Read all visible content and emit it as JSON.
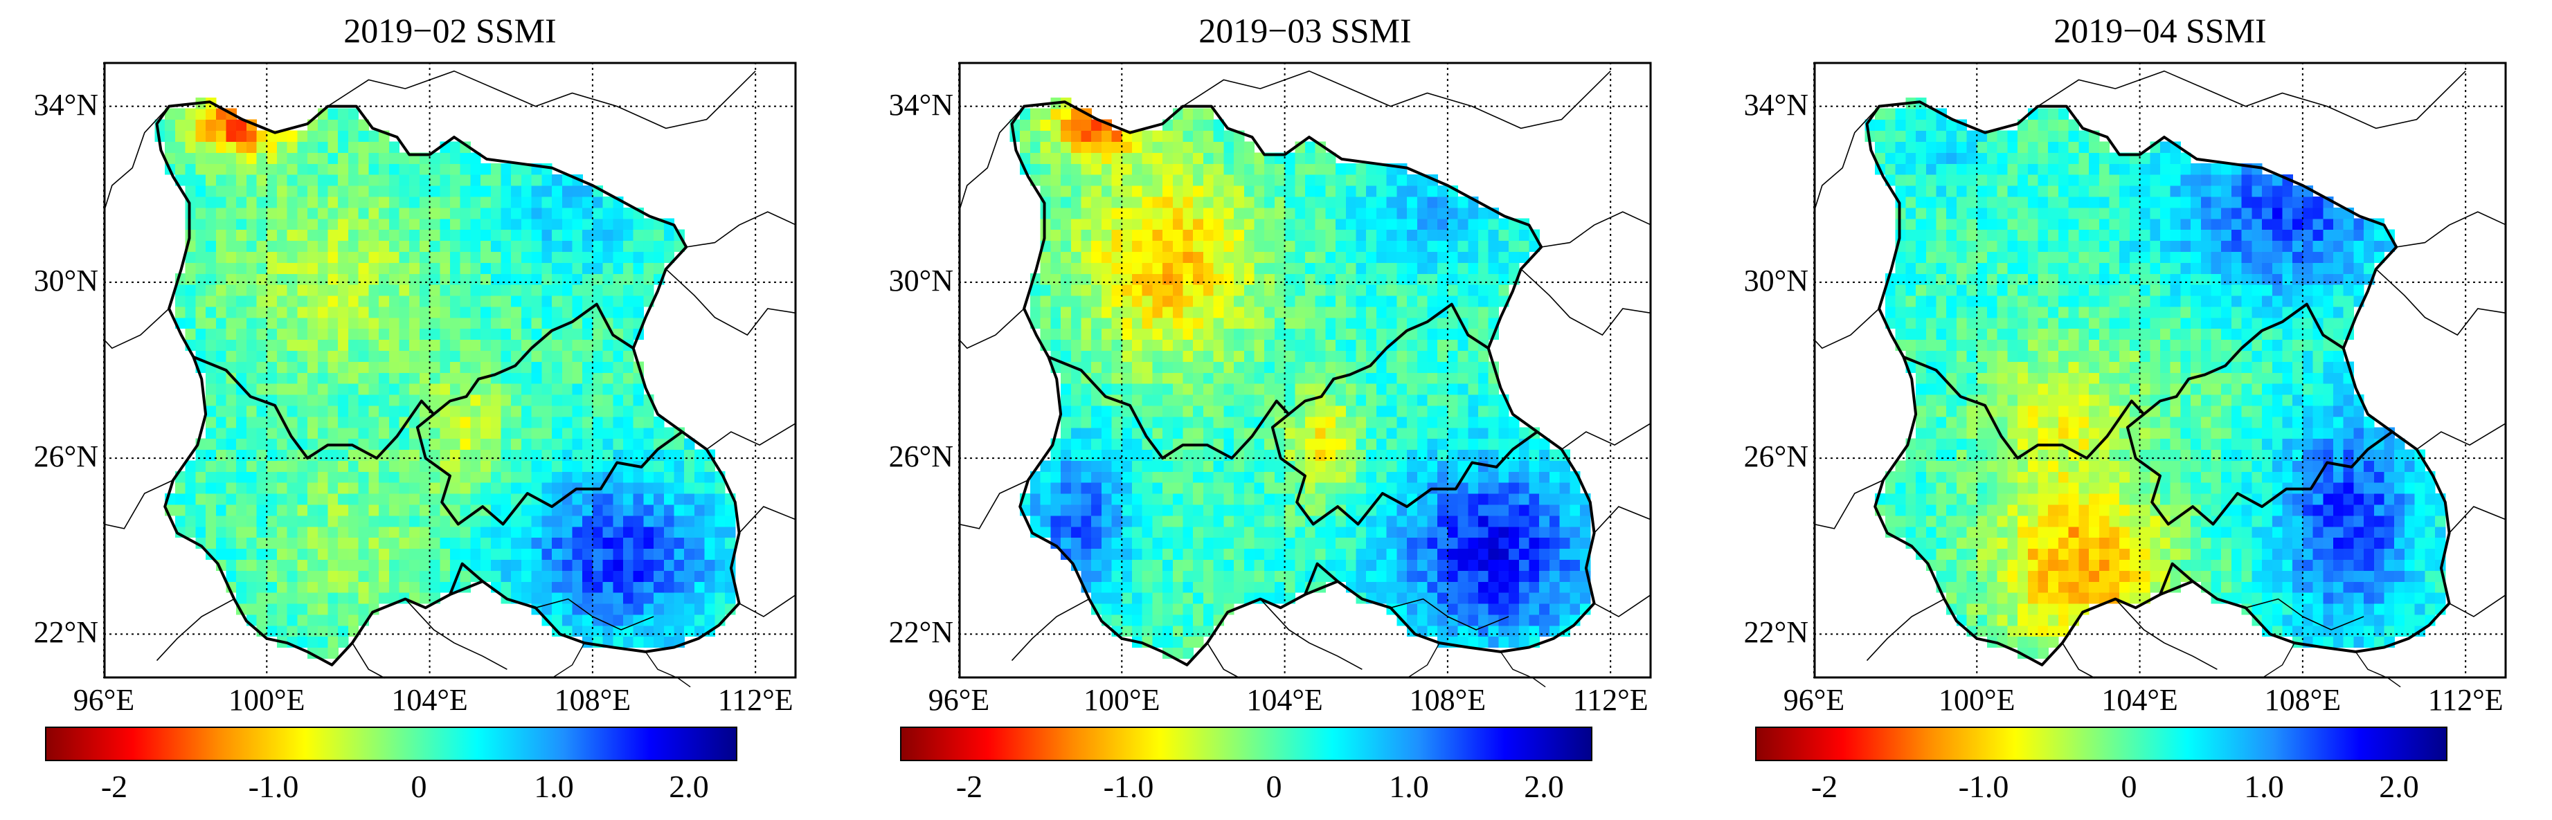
{
  "figure": {
    "panels": [
      {
        "title": "2019−02 SSMI",
        "pattern": "feb"
      },
      {
        "title": "2019−03 SSMI",
        "pattern": "mar"
      },
      {
        "title": "2019−04 SSMI",
        "pattern": "apr"
      }
    ],
    "lat_labels": [
      "34°N",
      "30°N",
      "26°N",
      "22°N"
    ],
    "lon_labels": [
      "96°E",
      "100°E",
      "104°E",
      "108°E",
      "112°E"
    ],
    "colorbar": {
      "ticks": [
        "-2",
        "-1.0",
        "0",
        "1.0",
        "2.0"
      ],
      "range": [
        -2.5,
        2.5
      ],
      "colors": [
        "#8b0000",
        "#ff0000",
        "#ff8c00",
        "#ffff00",
        "#7fff7f",
        "#00ffff",
        "#1e90ff",
        "#0000ff",
        "#00008b"
      ]
    }
  }
}
